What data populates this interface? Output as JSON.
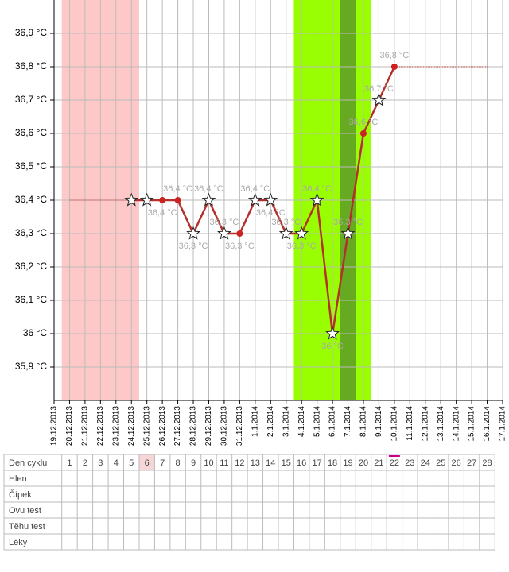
{
  "chart_data": {
    "type": "line",
    "categories": [
      "19.12.2013",
      "20.12.2013",
      "21.12.2013",
      "22.12.2013",
      "23.12.2013",
      "24.12.2013",
      "25.12.2013",
      "26.12.2013",
      "27.12.2013",
      "28.12.2013",
      "29.12.2013",
      "30.12.2013",
      "31.12.2013",
      "1.1.2014",
      "2.1.2014",
      "3.1.2014",
      "4.1.2014",
      "5.1.2014",
      "6.1.2014",
      "7.1.2014",
      "8.1.2014",
      "9.1.2014",
      "10.1.2014",
      "11.1.2014",
      "12.1.2014",
      "13.1.2014",
      "14.1.2014",
      "15.1.2014",
      "16.1.2014",
      "17.1.2014"
    ],
    "ylim": [
      35.8,
      37.0
    ],
    "yticks": [
      {
        "value": 35.9,
        "label": "35,9 °C"
      },
      {
        "value": 36,
        "label": "36 °C"
      },
      {
        "value": 36.1,
        "label": "36,1 °C"
      },
      {
        "value": 36.2,
        "label": "36,2 °C"
      },
      {
        "value": 36.3,
        "label": "36,3 °C"
      },
      {
        "value": 36.4,
        "label": "36,4 °C"
      },
      {
        "value": 36.5,
        "label": "36,5 °C"
      },
      {
        "value": 36.6,
        "label": "36,6 °C"
      },
      {
        "value": 36.7,
        "label": "36,7 °C"
      },
      {
        "value": 36.8,
        "label": "36,8 °C"
      },
      {
        "value": 36.9,
        "label": "36,9 °C"
      }
    ],
    "grid": true,
    "series": [
      {
        "color": "#b3302b",
        "values": [
          null,
          null,
          null,
          null,
          null,
          36.4,
          36.4,
          36.4,
          36.4,
          36.3,
          36.4,
          36.3,
          36.3,
          36.4,
          36.4,
          36.3,
          36.3,
          36.4,
          36.0,
          36.3,
          36.6,
          36.7,
          36.8,
          null,
          null,
          null,
          null,
          null,
          null,
          null
        ],
        "markers": [
          null,
          null,
          null,
          null,
          null,
          "star",
          "star",
          "dot",
          "dot",
          "star",
          "star",
          "star",
          "dot",
          "star",
          "star",
          "star",
          "star",
          "star",
          "star",
          "star",
          "dot",
          "star",
          "dot",
          null,
          null,
          null,
          null,
          null,
          null,
          null
        ],
        "value_labels": [
          null,
          null,
          null,
          null,
          null,
          null,
          null,
          "36,4 °C",
          "36,4 °C",
          "36,3 °C",
          "36,4 °C",
          "36,3 °C",
          "36,3 °C",
          "36,4 °C",
          "36,4 °C",
          "36,3 °C",
          "36,3 °C",
          "36,4 °C",
          "36 °C",
          "36,3 °C",
          "36,6 °C",
          "36,7 °C",
          "36,8 °C",
          null,
          null,
          null,
          null,
          null,
          null,
          null
        ],
        "label_positions": [
          null,
          null,
          null,
          null,
          null,
          null,
          null,
          "below",
          "above",
          "below",
          "above",
          "above",
          "below",
          "above",
          "below",
          "above",
          "below",
          "above",
          "below",
          "above",
          "above",
          "above",
          "above",
          null,
          null,
          null,
          null,
          null,
          null,
          null
        ]
      }
    ],
    "bands": [
      {
        "start": "20.12.2013",
        "end": "24.12.2013",
        "color": "#ffc8c8"
      },
      {
        "start": "4.1.2014",
        "end": "8.1.2014",
        "color": "#99ff00"
      },
      {
        "start": "7.1.2014",
        "end": "7.1.2014",
        "color": "#66aa22"
      }
    ],
    "reference_lines": [
      {
        "value": 36.4,
        "start": "20.12.2013",
        "end": "24.12.2013",
        "color": "#b3302b"
      },
      {
        "value": 36.8,
        "start": "10.1.2014",
        "end": "16.1.2014",
        "color": "#b3302b"
      }
    ]
  },
  "cycle_table": {
    "header_label": "Den cyklu",
    "days": [
      1,
      2,
      3,
      4,
      5,
      6,
      7,
      8,
      9,
      10,
      11,
      12,
      13,
      14,
      15,
      16,
      17,
      18,
      19,
      20,
      21,
      22,
      23,
      24,
      25,
      26,
      27,
      28
    ],
    "highlighted_days": [
      6
    ],
    "current_day": 22,
    "rows": [
      "Hlen",
      "Čípek",
      "Ovu test",
      "Těhu test",
      "Léky"
    ]
  }
}
